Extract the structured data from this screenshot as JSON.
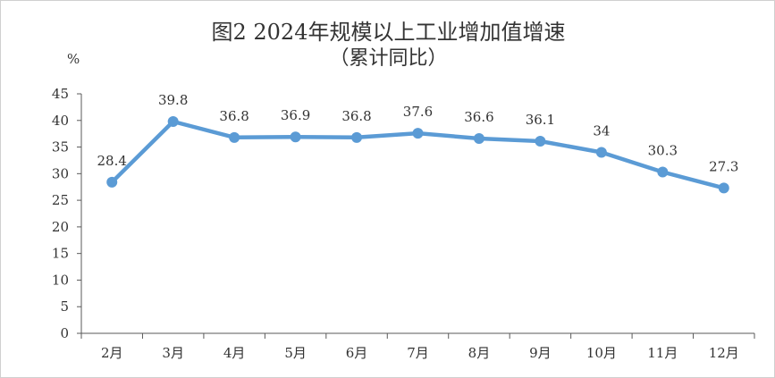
{
  "chart_data": {
    "type": "line",
    "title": "图2  2024年规模以上工业增加值增速",
    "subtitle": "（累计同比）",
    "ylabel": "%",
    "xlabel": "",
    "ylim": [
      0,
      45
    ],
    "yticks": [
      0,
      5,
      10,
      15,
      20,
      25,
      30,
      35,
      40,
      45
    ],
    "grid": false,
    "legend": "none",
    "categories": [
      "2月",
      "3月",
      "4月",
      "5月",
      "6月",
      "7月",
      "8月",
      "9月",
      "10月",
      "11月",
      "12月"
    ],
    "series": [
      {
        "values": [
          28.4,
          39.8,
          36.8,
          36.9,
          36.8,
          37.6,
          36.6,
          36.1,
          34,
          30.3,
          27.3
        ],
        "labels": [
          "28.4",
          "39.8",
          "36.8",
          "36.9",
          "36.8",
          "37.6",
          "36.6",
          "36.1",
          "34",
          "30.3",
          "27.3"
        ],
        "color": "#5b9bd5"
      }
    ],
    "axis_color": "#595959",
    "text_color": "#333333"
  }
}
